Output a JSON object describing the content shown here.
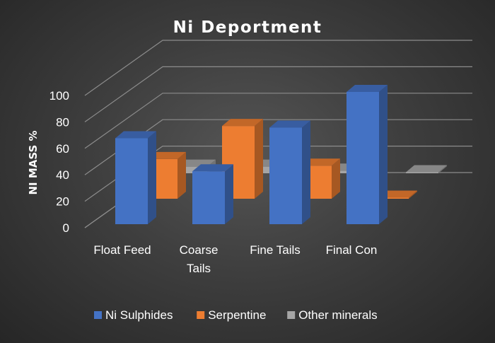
{
  "chart_data": {
    "type": "bar",
    "title": "Ni Deportment",
    "xlabel": "",
    "ylabel": "NI MASS %",
    "ylim": [
      0,
      100
    ],
    "yticks": [
      0,
      20,
      40,
      60,
      80,
      100
    ],
    "categories": [
      "Float Feed",
      "Coarse Tails",
      "Fine Tails",
      "Final Con"
    ],
    "category_lines": [
      [
        "Float Feed"
      ],
      [
        "Coarse",
        "Tails"
      ],
      [
        "Fine Tails"
      ],
      [
        "Final Con"
      ]
    ],
    "series": [
      {
        "name": "Ni Sulphides",
        "color": "#4472C4",
        "values": [
          65,
          40,
          73,
          100
        ]
      },
      {
        "name": "Serpentine",
        "color": "#ED7D31",
        "values": [
          30,
          55,
          25,
          0
        ]
      },
      {
        "name": "Other minerals",
        "color": "#A5A5A5",
        "values": [
          5,
          5,
          2,
          0
        ]
      }
    ],
    "style": "3d-column",
    "grid": true,
    "legend": "bottom"
  }
}
